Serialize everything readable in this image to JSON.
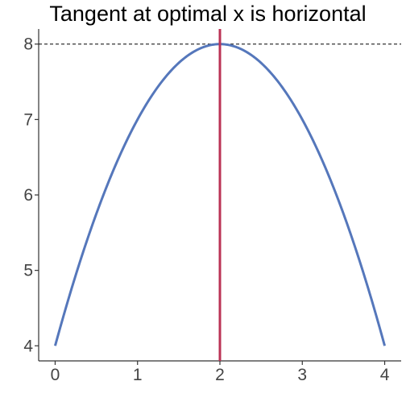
{
  "chart_data": {
    "type": "line",
    "title": "Tangent at optimal x is horizontal",
    "xlabel": "",
    "ylabel": "",
    "xlim": [
      -0.2,
      4.2
    ],
    "ylim": [
      3.8,
      8.2
    ],
    "x_ticks": [
      0,
      1,
      2,
      3,
      4
    ],
    "y_ticks": [
      4,
      5,
      6,
      7,
      8
    ],
    "grid": false,
    "series": [
      {
        "color": "#5577BB",
        "x": [
          0,
          0.25,
          0.5,
          0.75,
          1,
          1.25,
          1.5,
          1.75,
          2,
          2.25,
          2.5,
          2.75,
          3,
          3.25,
          3.5,
          3.75,
          4
        ],
        "y": [
          4,
          4.9375,
          5.75,
          6.4375,
          7,
          7.4375,
          7.75,
          7.9375,
          8,
          7.9375,
          7.75,
          7.4375,
          7,
          6.4375,
          5.75,
          4.9375,
          4
        ]
      }
    ],
    "annotations": {
      "horizontal_line": {
        "y": 8,
        "style": "dashed",
        "color": "#000000"
      },
      "vertical_line": {
        "x": 2,
        "style": "solid",
        "color": "#BB3355"
      }
    }
  }
}
